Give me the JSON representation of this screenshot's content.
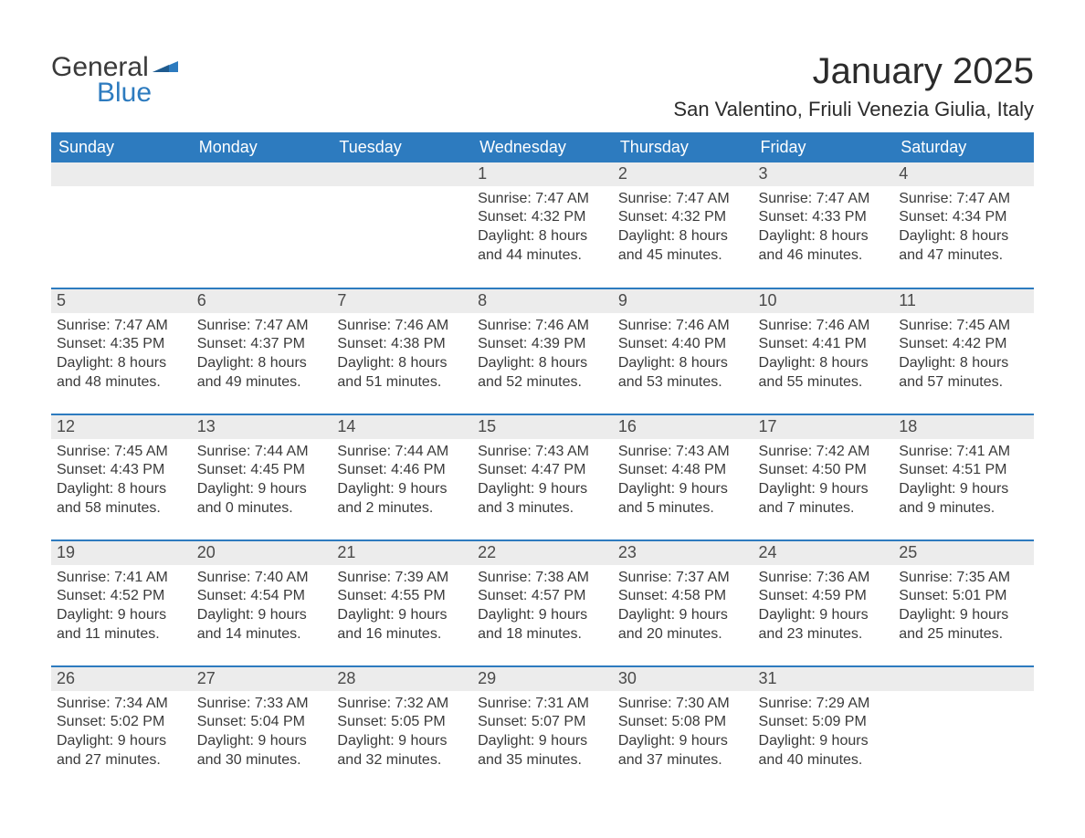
{
  "logo": {
    "general": "General",
    "blue": "Blue"
  },
  "header": {
    "month_title": "January 2025",
    "location": "San Valentino, Friuli Venezia Giulia, Italy"
  },
  "colors": {
    "header_bg": "#2d7bbf",
    "header_text": "#ffffff",
    "daynum_bg": "#ececec",
    "row_divider": "#2d7bbf",
    "body_text": "#3a3a3a",
    "logo_blue": "#2d7bbf"
  },
  "weekdays": [
    "Sunday",
    "Monday",
    "Tuesday",
    "Wednesday",
    "Thursday",
    "Friday",
    "Saturday"
  ],
  "weeks": [
    [
      null,
      null,
      null,
      {
        "day": "1",
        "sunrise": "Sunrise: 7:47 AM",
        "sunset": "Sunset: 4:32 PM",
        "daylight1": "Daylight: 8 hours",
        "daylight2": "and 44 minutes."
      },
      {
        "day": "2",
        "sunrise": "Sunrise: 7:47 AM",
        "sunset": "Sunset: 4:32 PM",
        "daylight1": "Daylight: 8 hours",
        "daylight2": "and 45 minutes."
      },
      {
        "day": "3",
        "sunrise": "Sunrise: 7:47 AM",
        "sunset": "Sunset: 4:33 PM",
        "daylight1": "Daylight: 8 hours",
        "daylight2": "and 46 minutes."
      },
      {
        "day": "4",
        "sunrise": "Sunrise: 7:47 AM",
        "sunset": "Sunset: 4:34 PM",
        "daylight1": "Daylight: 8 hours",
        "daylight2": "and 47 minutes."
      }
    ],
    [
      {
        "day": "5",
        "sunrise": "Sunrise: 7:47 AM",
        "sunset": "Sunset: 4:35 PM",
        "daylight1": "Daylight: 8 hours",
        "daylight2": "and 48 minutes."
      },
      {
        "day": "6",
        "sunrise": "Sunrise: 7:47 AM",
        "sunset": "Sunset: 4:37 PM",
        "daylight1": "Daylight: 8 hours",
        "daylight2": "and 49 minutes."
      },
      {
        "day": "7",
        "sunrise": "Sunrise: 7:46 AM",
        "sunset": "Sunset: 4:38 PM",
        "daylight1": "Daylight: 8 hours",
        "daylight2": "and 51 minutes."
      },
      {
        "day": "8",
        "sunrise": "Sunrise: 7:46 AM",
        "sunset": "Sunset: 4:39 PM",
        "daylight1": "Daylight: 8 hours",
        "daylight2": "and 52 minutes."
      },
      {
        "day": "9",
        "sunrise": "Sunrise: 7:46 AM",
        "sunset": "Sunset: 4:40 PM",
        "daylight1": "Daylight: 8 hours",
        "daylight2": "and 53 minutes."
      },
      {
        "day": "10",
        "sunrise": "Sunrise: 7:46 AM",
        "sunset": "Sunset: 4:41 PM",
        "daylight1": "Daylight: 8 hours",
        "daylight2": "and 55 minutes."
      },
      {
        "day": "11",
        "sunrise": "Sunrise: 7:45 AM",
        "sunset": "Sunset: 4:42 PM",
        "daylight1": "Daylight: 8 hours",
        "daylight2": "and 57 minutes."
      }
    ],
    [
      {
        "day": "12",
        "sunrise": "Sunrise: 7:45 AM",
        "sunset": "Sunset: 4:43 PM",
        "daylight1": "Daylight: 8 hours",
        "daylight2": "and 58 minutes."
      },
      {
        "day": "13",
        "sunrise": "Sunrise: 7:44 AM",
        "sunset": "Sunset: 4:45 PM",
        "daylight1": "Daylight: 9 hours",
        "daylight2": "and 0 minutes."
      },
      {
        "day": "14",
        "sunrise": "Sunrise: 7:44 AM",
        "sunset": "Sunset: 4:46 PM",
        "daylight1": "Daylight: 9 hours",
        "daylight2": "and 2 minutes."
      },
      {
        "day": "15",
        "sunrise": "Sunrise: 7:43 AM",
        "sunset": "Sunset: 4:47 PM",
        "daylight1": "Daylight: 9 hours",
        "daylight2": "and 3 minutes."
      },
      {
        "day": "16",
        "sunrise": "Sunrise: 7:43 AM",
        "sunset": "Sunset: 4:48 PM",
        "daylight1": "Daylight: 9 hours",
        "daylight2": "and 5 minutes."
      },
      {
        "day": "17",
        "sunrise": "Sunrise: 7:42 AM",
        "sunset": "Sunset: 4:50 PM",
        "daylight1": "Daylight: 9 hours",
        "daylight2": "and 7 minutes."
      },
      {
        "day": "18",
        "sunrise": "Sunrise: 7:41 AM",
        "sunset": "Sunset: 4:51 PM",
        "daylight1": "Daylight: 9 hours",
        "daylight2": "and 9 minutes."
      }
    ],
    [
      {
        "day": "19",
        "sunrise": "Sunrise: 7:41 AM",
        "sunset": "Sunset: 4:52 PM",
        "daylight1": "Daylight: 9 hours",
        "daylight2": "and 11 minutes."
      },
      {
        "day": "20",
        "sunrise": "Sunrise: 7:40 AM",
        "sunset": "Sunset: 4:54 PM",
        "daylight1": "Daylight: 9 hours",
        "daylight2": "and 14 minutes."
      },
      {
        "day": "21",
        "sunrise": "Sunrise: 7:39 AM",
        "sunset": "Sunset: 4:55 PM",
        "daylight1": "Daylight: 9 hours",
        "daylight2": "and 16 minutes."
      },
      {
        "day": "22",
        "sunrise": "Sunrise: 7:38 AM",
        "sunset": "Sunset: 4:57 PM",
        "daylight1": "Daylight: 9 hours",
        "daylight2": "and 18 minutes."
      },
      {
        "day": "23",
        "sunrise": "Sunrise: 7:37 AM",
        "sunset": "Sunset: 4:58 PM",
        "daylight1": "Daylight: 9 hours",
        "daylight2": "and 20 minutes."
      },
      {
        "day": "24",
        "sunrise": "Sunrise: 7:36 AM",
        "sunset": "Sunset: 4:59 PM",
        "daylight1": "Daylight: 9 hours",
        "daylight2": "and 23 minutes."
      },
      {
        "day": "25",
        "sunrise": "Sunrise: 7:35 AM",
        "sunset": "Sunset: 5:01 PM",
        "daylight1": "Daylight: 9 hours",
        "daylight2": "and 25 minutes."
      }
    ],
    [
      {
        "day": "26",
        "sunrise": "Sunrise: 7:34 AM",
        "sunset": "Sunset: 5:02 PM",
        "daylight1": "Daylight: 9 hours",
        "daylight2": "and 27 minutes."
      },
      {
        "day": "27",
        "sunrise": "Sunrise: 7:33 AM",
        "sunset": "Sunset: 5:04 PM",
        "daylight1": "Daylight: 9 hours",
        "daylight2": "and 30 minutes."
      },
      {
        "day": "28",
        "sunrise": "Sunrise: 7:32 AM",
        "sunset": "Sunset: 5:05 PM",
        "daylight1": "Daylight: 9 hours",
        "daylight2": "and 32 minutes."
      },
      {
        "day": "29",
        "sunrise": "Sunrise: 7:31 AM",
        "sunset": "Sunset: 5:07 PM",
        "daylight1": "Daylight: 9 hours",
        "daylight2": "and 35 minutes."
      },
      {
        "day": "30",
        "sunrise": "Sunrise: 7:30 AM",
        "sunset": "Sunset: 5:08 PM",
        "daylight1": "Daylight: 9 hours",
        "daylight2": "and 37 minutes."
      },
      {
        "day": "31",
        "sunrise": "Sunrise: 7:29 AM",
        "sunset": "Sunset: 5:09 PM",
        "daylight1": "Daylight: 9 hours",
        "daylight2": "and 40 minutes."
      },
      null
    ]
  ]
}
